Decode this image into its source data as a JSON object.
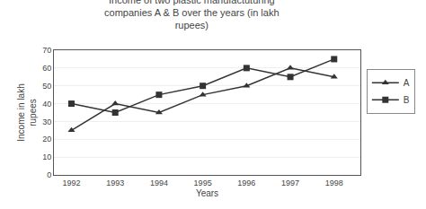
{
  "chart_data": {
    "type": "line",
    "title": "Income of two plastic manufactuturing\ncompanies A & B over the years (in lakh\nrupees)",
    "x_label": "Years",
    "y_label": "Income in lakh\nrupees",
    "x": [
      1992,
      1993,
      1994,
      1995,
      1996,
      1997,
      1998
    ],
    "series": [
      {
        "name": "A",
        "color": "#333333",
        "marker": "triangle",
        "values": [
          25,
          40,
          35,
          45,
          50,
          60,
          55
        ]
      },
      {
        "name": "B",
        "color": "#333333",
        "marker": "square",
        "values": [
          40,
          35,
          45,
          50,
          60,
          55,
          65
        ]
      }
    ],
    "xlim": [
      1991.6,
      1998.6
    ],
    "xticks": [
      1992,
      1993,
      1994,
      1995,
      1996,
      1997,
      1998
    ],
    "ylim": [
      0,
      70
    ],
    "yticks": [
      0,
      10,
      20,
      30,
      40,
      50,
      60,
      70
    ],
    "grid": true,
    "legend": "right"
  }
}
